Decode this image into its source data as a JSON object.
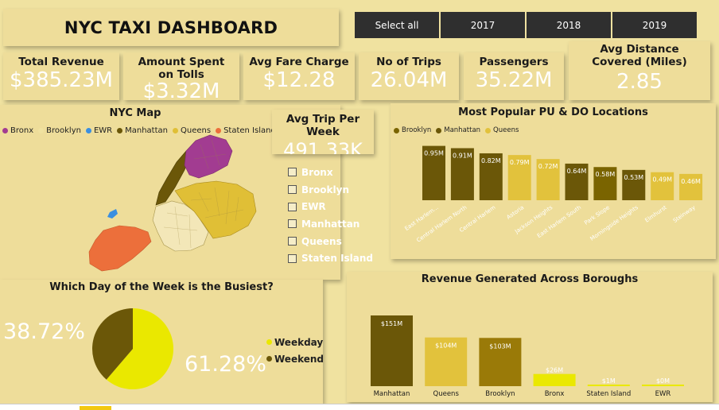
{
  "title": "NYC TAXI DASHBOARD",
  "year_slicer": [
    "Select all",
    "2017",
    "2018",
    "2019"
  ],
  "kpis": {
    "total_revenue": {
      "label": "Total Revenue",
      "value": "$385.23M"
    },
    "tolls": {
      "label": "Amount Spent on Tolls",
      "value": "$3.32M"
    },
    "avg_fare": {
      "label": "Avg Fare Charge",
      "value": "$12.28"
    },
    "trips": {
      "label": "No of Trips",
      "value": "26.04M"
    },
    "passengers": {
      "label": "Passengers",
      "value": "35.22M"
    },
    "avg_distance": {
      "label": "Avg Distance Covered (Miles)",
      "value": "2.85"
    },
    "avg_trip_week": {
      "label": "Avg Trip Per Week",
      "value": "491.33K"
    }
  },
  "map": {
    "title": "NYC Map",
    "legend": [
      {
        "name": "Bronx",
        "color": "#A23C91"
      },
      {
        "name": "Brooklyn",
        "color": "#F0E2A0"
      },
      {
        "name": "EWR",
        "color": "#3B8FE0"
      },
      {
        "name": "Manhattan",
        "color": "#6B5708"
      },
      {
        "name": "Queens",
        "color": "#E0BF36"
      },
      {
        "name": "Staten Island",
        "color": "#EC6F3B"
      }
    ]
  },
  "borough_filter": [
    "Bronx",
    "Brooklyn",
    "EWR",
    "Manhattan",
    "Queens",
    "Staten Island"
  ],
  "popular_locations": {
    "title": "Most Popular PU & DO Locations",
    "legend": [
      {
        "name": "Brooklyn",
        "color": "#7A6400"
      },
      {
        "name": "Manhattan",
        "color": "#6B5708"
      },
      {
        "name": "Queens",
        "color": "#E2C23C"
      }
    ]
  },
  "busiest_day": {
    "title": "Which Day of the Week is the Busiest?",
    "left_label": "38.72%",
    "right_label": "61.28%",
    "legend": [
      {
        "name": "Weekday",
        "color": "#EAE800"
      },
      {
        "name": "Weekend",
        "color": "#6B5708"
      }
    ]
  },
  "revenue_boroughs": {
    "title": "Revenue Generated Across Boroughs"
  },
  "chart_data": [
    {
      "type": "bar",
      "title": "Most Popular PU & DO Locations",
      "categories": [
        "East Harlem...",
        "Central Harlem North",
        "Central Harlem",
        "Astoria",
        "Jackson Heights",
        "East Harlem South",
        "Park Slope",
        "Morningside Heights",
        "Elmhurst",
        "Steinway"
      ],
      "values": [
        0.95,
        0.91,
        0.82,
        0.79,
        0.72,
        0.64,
        0.58,
        0.53,
        0.49,
        0.46
      ],
      "labels": [
        "0.95M",
        "0.91M",
        "0.82M",
        "0.79M",
        "0.72M",
        "0.64M",
        "0.58M",
        "0.53M",
        "0.49M",
        "0.46M"
      ],
      "bar_colors": [
        "#6B5708",
        "#6B5708",
        "#6B5708",
        "#E2C23C",
        "#E2C23C",
        "#6B5708",
        "#7A6400",
        "#6B5708",
        "#E2C23C",
        "#E2C23C"
      ],
      "legend": [
        "Brooklyn",
        "Manhattan",
        "Queens"
      ],
      "legend_position": "top-left",
      "ylim": [
        0,
        1.0
      ],
      "grid": false
    },
    {
      "type": "pie",
      "title": "Which Day of the Week is the Busiest?",
      "categories": [
        "Weekday",
        "Weekend"
      ],
      "values": [
        61.28,
        38.72
      ],
      "labels": [
        "61.28%",
        "38.72%"
      ],
      "colors": [
        "#EAE800",
        "#6B5708"
      ],
      "legend_position": "right"
    },
    {
      "type": "bar",
      "title": "Revenue Generated Across Boroughs",
      "categories": [
        "Manhattan",
        "Queens",
        "Brooklyn",
        "Bronx",
        "Staten Island",
        "EWR"
      ],
      "values": [
        151,
        104,
        103,
        26,
        1,
        0
      ],
      "labels": [
        "$151M",
        "$104M",
        "$103M",
        "$26M",
        "$1M",
        "$0M"
      ],
      "bar_colors": [
        "#6B5708",
        "#E2C23C",
        "#9A7A08",
        "#EAE800",
        "#EAE800",
        "#EAE800"
      ],
      "ylim": [
        0,
        160
      ],
      "grid": false
    }
  ]
}
